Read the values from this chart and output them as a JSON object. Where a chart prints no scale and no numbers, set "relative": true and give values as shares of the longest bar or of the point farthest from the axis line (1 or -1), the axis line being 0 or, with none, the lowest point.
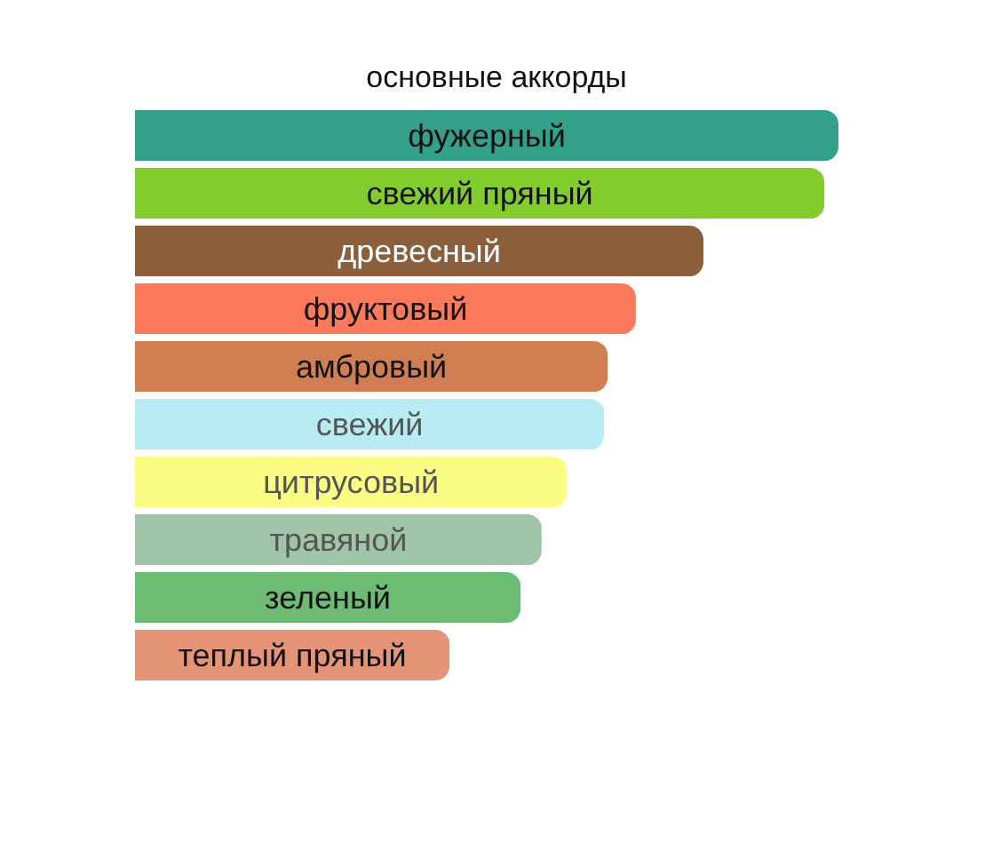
{
  "chart_data": {
    "type": "bar",
    "orientation": "horizontal",
    "relative": true,
    "title": "основные аккорды",
    "categories": [
      "фужерный",
      "свежий пряный",
      "древесный",
      "фруктовый",
      "амбровый",
      "свежий",
      "цитрусовый",
      "травяной",
      "зеленый",
      "теплый пряный"
    ],
    "values": [
      1,
      0.98,
      0.808,
      0.712,
      0.672,
      0.667,
      0.614,
      0.578,
      0.548,
      0.447
    ],
    "colors": [
      "#33a08a",
      "#82cc2e",
      "#8b5e3c",
      "#fc7a5c",
      "#d17f52",
      "#b8ebf2",
      "#fafc84",
      "#a0c4a8",
      "#6cbc74",
      "#e69478"
    ]
  }
}
